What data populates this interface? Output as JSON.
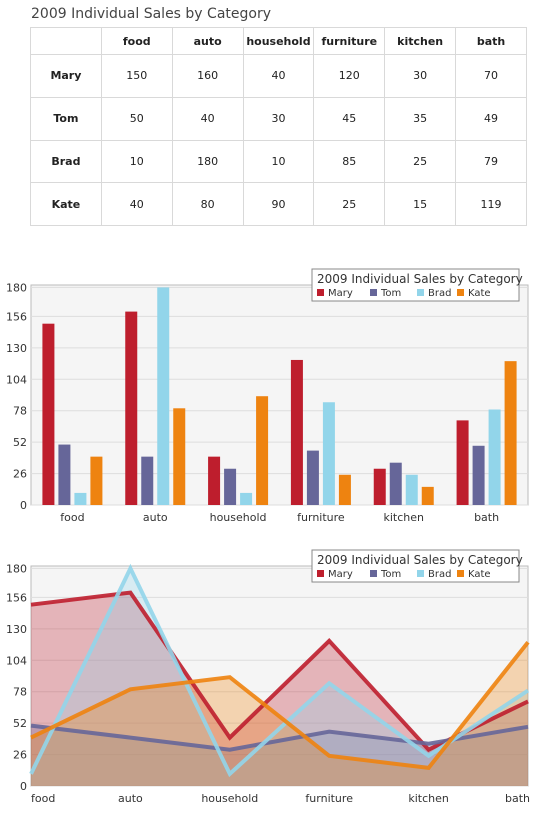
{
  "table": {
    "title": "2009 Individual Sales by Category",
    "columns": [
      "food",
      "auto",
      "household",
      "furniture",
      "kitchen",
      "bath"
    ],
    "rows": [
      {
        "name": "Mary",
        "values": [
          150,
          160,
          40,
          120,
          30,
          70
        ]
      },
      {
        "name": "Tom",
        "values": [
          50,
          40,
          30,
          45,
          35,
          49
        ]
      },
      {
        "name": "Brad",
        "values": [
          10,
          180,
          10,
          85,
          25,
          79
        ]
      },
      {
        "name": "Kate",
        "values": [
          40,
          80,
          90,
          25,
          15,
          119
        ]
      }
    ]
  },
  "chart_data": [
    {
      "type": "bar",
      "title": "2009 Individual Sales by Category",
      "categories": [
        "food",
        "auto",
        "household",
        "furniture",
        "kitchen",
        "bath"
      ],
      "series": [
        {
          "name": "Mary",
          "color": "#be1e2d",
          "values": [
            150,
            160,
            40,
            120,
            30,
            70
          ]
        },
        {
          "name": "Tom",
          "color": "#666699",
          "values": [
            50,
            40,
            30,
            45,
            35,
            49
          ]
        },
        {
          "name": "Brad",
          "color": "#92d5ea",
          "values": [
            10,
            180,
            10,
            85,
            25,
            79
          ]
        },
        {
          "name": "Kate",
          "color": "#ee8310",
          "values": [
            40,
            80,
            90,
            25,
            15,
            119
          ]
        }
      ],
      "yticks": [
        0,
        26,
        52,
        78,
        104,
        130,
        156,
        180
      ],
      "ylim": [
        0,
        182
      ],
      "grid": true,
      "legend_position": "top-right"
    },
    {
      "type": "area",
      "title": "2009 Individual Sales by Category",
      "categories": [
        "food",
        "auto",
        "household",
        "furniture",
        "kitchen",
        "bath"
      ],
      "series": [
        {
          "name": "Mary",
          "color": "#be1e2d",
          "values": [
            150,
            160,
            40,
            120,
            30,
            70
          ]
        },
        {
          "name": "Tom",
          "color": "#666699",
          "values": [
            50,
            40,
            30,
            45,
            35,
            49
          ]
        },
        {
          "name": "Brad",
          "color": "#92d5ea",
          "values": [
            10,
            180,
            10,
            85,
            25,
            79
          ]
        },
        {
          "name": "Kate",
          "color": "#ee8310",
          "values": [
            40,
            80,
            90,
            25,
            15,
            119
          ]
        }
      ],
      "yticks": [
        0,
        26,
        52,
        78,
        104,
        130,
        156,
        180
      ],
      "ylim": [
        0,
        182
      ],
      "grid": true,
      "legend_position": "top-right"
    }
  ]
}
